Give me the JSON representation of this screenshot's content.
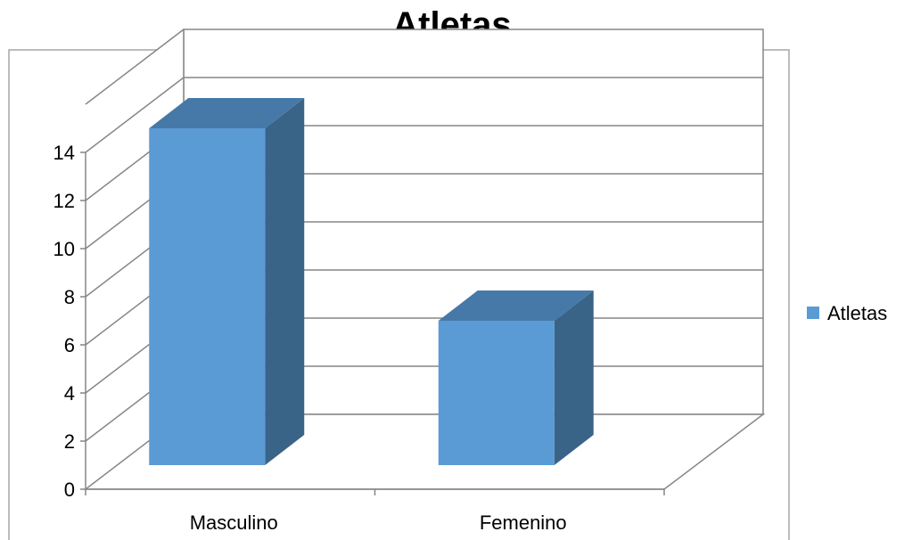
{
  "chart_data": {
    "type": "bar",
    "title": "Atletas",
    "categories": [
      "Masculino",
      "Femenino"
    ],
    "series": [
      {
        "name": "Atletas",
        "values": [
          14,
          6
        ],
        "color": "#5b9bd5"
      }
    ],
    "ylim": [
      0,
      14
    ],
    "yticks": [
      0,
      2,
      4,
      6,
      8,
      10,
      12,
      14
    ],
    "grid": true,
    "legend_position": "right",
    "three_d": true
  }
}
